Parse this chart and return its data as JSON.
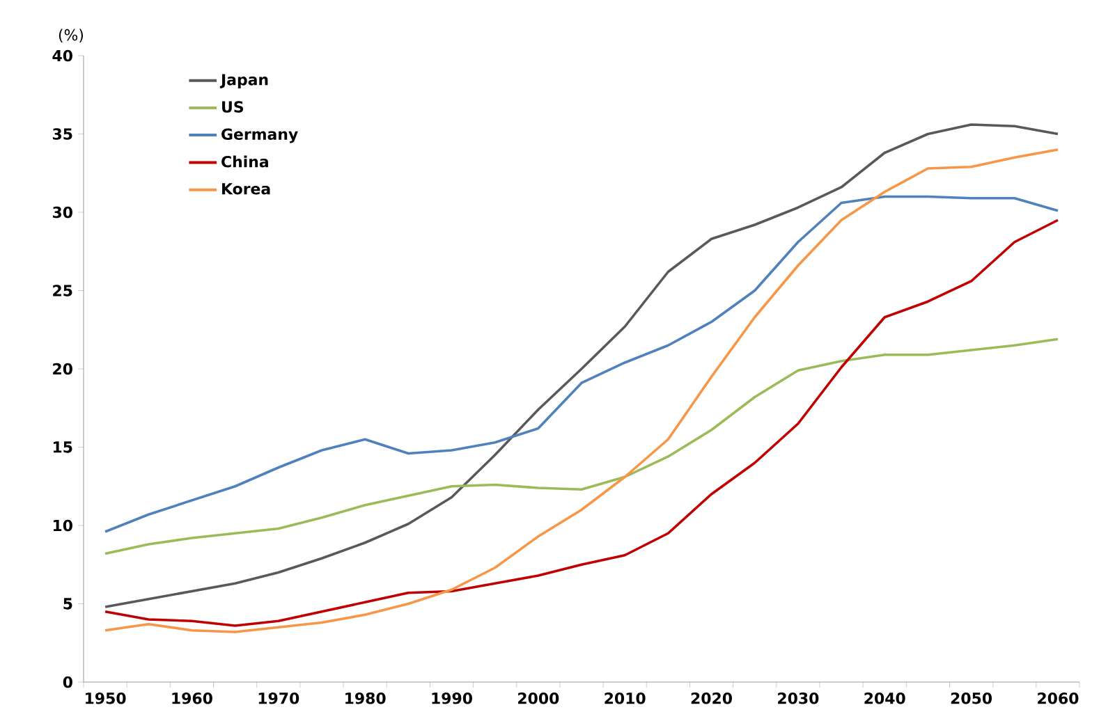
{
  "chart_data": {
    "type": "line",
    "ylabel": "(%)",
    "categories": [
      "1950",
      null,
      "1960",
      null,
      "1970",
      null,
      "1980",
      null,
      "1990",
      null,
      "2000",
      null,
      "2010",
      null,
      "2020",
      null,
      "2030",
      null,
      "2040",
      null,
      "2050",
      null,
      "2060"
    ],
    "ylim": [
      0,
      40
    ],
    "yticks": [
      0,
      5,
      10,
      15,
      20,
      25,
      30,
      35,
      40
    ],
    "grid": false,
    "legend": "top left",
    "marker": "none",
    "line_style": "solid",
    "series": [
      {
        "name": "Japan",
        "color": "#595959",
        "values": [
          4.8,
          5.3,
          5.8,
          6.3,
          7.0,
          7.9,
          8.9,
          10.1,
          11.8,
          14.5,
          17.4,
          20.0,
          22.7,
          26.2,
          28.3,
          29.2,
          30.3,
          31.6,
          33.8,
          35.0,
          35.6,
          35.5,
          35.0
        ]
      },
      {
        "name": "US",
        "color": "#9bbb59",
        "values": [
          8.2,
          8.8,
          9.2,
          9.5,
          9.8,
          10.5,
          11.3,
          11.9,
          12.5,
          12.6,
          12.4,
          12.3,
          13.1,
          14.4,
          16.1,
          18.2,
          19.9,
          20.5,
          20.9,
          20.9,
          21.2,
          21.5,
          21.9
        ]
      },
      {
        "name": "Germany",
        "color": "#4f81bd",
        "values": [
          9.6,
          10.7,
          11.6,
          12.5,
          13.7,
          14.8,
          15.5,
          14.6,
          14.8,
          15.3,
          16.2,
          19.1,
          20.4,
          21.5,
          23.0,
          25.0,
          28.1,
          30.6,
          31.0,
          31.0,
          30.9,
          30.9,
          30.1
        ]
      },
      {
        "name": "China",
        "color": "#c00000",
        "values": [
          4.5,
          4.0,
          3.9,
          3.6,
          3.9,
          4.5,
          5.1,
          5.7,
          5.8,
          6.3,
          6.8,
          7.5,
          8.1,
          9.5,
          12.0,
          14.0,
          16.5,
          20.1,
          23.3,
          24.3,
          25.6,
          28.1,
          29.5
        ]
      },
      {
        "name": "Korea",
        "color": "#f79646",
        "values": [
          3.3,
          3.7,
          3.3,
          3.2,
          3.5,
          3.8,
          4.3,
          5.0,
          5.9,
          7.3,
          9.3,
          11.0,
          13.1,
          15.5,
          19.5,
          23.3,
          26.6,
          29.5,
          31.3,
          32.8,
          32.9,
          33.5,
          34.0
        ]
      }
    ]
  }
}
